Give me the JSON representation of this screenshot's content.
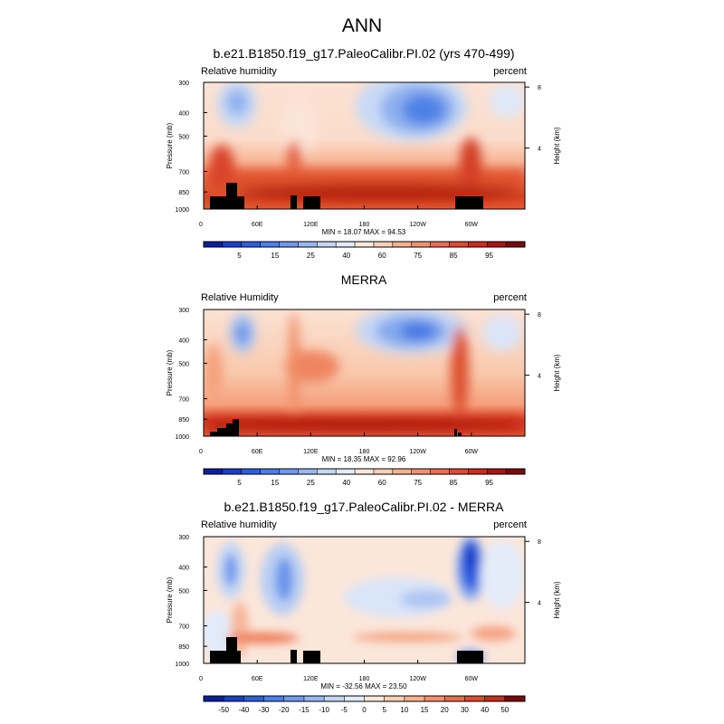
{
  "page_title": "ANN",
  "chart_data": [
    {
      "type": "heatmap",
      "title": "b.e21.B1850.f19_g17.PaleoCalibr.PI.02 (yrs 470-499)",
      "left_label": "Relative humidity",
      "right_label": "percent",
      "ylabel": "Pressure (mb)",
      "ylabel_right": "Height (km)",
      "yticks": [
        "300",
        "400",
        "500",
        "700",
        "850",
        "1000"
      ],
      "yticks_right": [
        "8",
        "4"
      ],
      "xticks": [
        "0",
        "60E",
        "120E",
        "180",
        "120W",
        "60W"
      ],
      "stats": "MIN = 18.07  MAX = 94.53",
      "colorbar_labels": [
        "5",
        "15",
        "25",
        "40",
        "60",
        "75",
        "85",
        "95"
      ],
      "colorbar_colors": [
        "#0a1fa0",
        "#1a3fcc",
        "#2c5fe0",
        "#4a80ec",
        "#6f9af0",
        "#98b8f2",
        "#c4d8f6",
        "#e2ecfb",
        "#fbe8dc",
        "#fbd0b6",
        "#f8b28f",
        "#f39070",
        "#ed6c4f",
        "#e14a31",
        "#cc2c1b",
        "#a81510",
        "#7a0a08"
      ],
      "ylim": [
        1000,
        300
      ],
      "xlim": [
        0,
        360
      ]
    },
    {
      "type": "heatmap",
      "title": "MERRA",
      "left_label": "Relative Humidity",
      "right_label": "percent",
      "ylabel": "Pressure (mb)",
      "ylabel_right": "Height (km)",
      "yticks": [
        "300",
        "400",
        "500",
        "700",
        "850",
        "1000"
      ],
      "yticks_right": [
        "8",
        "4"
      ],
      "xticks": [
        "0",
        "60E",
        "120E",
        "180",
        "120W",
        "60W"
      ],
      "stats": "MIN = 18.35  MAX = 92.96",
      "colorbar_labels": [
        "5",
        "15",
        "25",
        "40",
        "60",
        "75",
        "85",
        "95"
      ],
      "colorbar_colors": [
        "#0a1fa0",
        "#1a3fcc",
        "#2c5fe0",
        "#4a80ec",
        "#6f9af0",
        "#98b8f2",
        "#c4d8f6",
        "#e2ecfb",
        "#fbe8dc",
        "#fbd0b6",
        "#f8b28f",
        "#f39070",
        "#ed6c4f",
        "#e14a31",
        "#cc2c1b",
        "#a81510",
        "#7a0a08"
      ],
      "ylim": [
        1000,
        300
      ],
      "xlim": [
        0,
        360
      ]
    },
    {
      "type": "heatmap",
      "title": "b.e21.B1850.f19_g17.PaleoCalibr.PI.02 - MERRA",
      "left_label": "Relative humidity",
      "right_label": "percent",
      "ylabel": "Pressure (mb)",
      "ylabel_right": "Height (km)",
      "yticks": [
        "300",
        "400",
        "500",
        "700",
        "850",
        "1000"
      ],
      "yticks_right": [
        "8",
        "4"
      ],
      "xticks": [
        "0",
        "60E",
        "120E",
        "180",
        "120W",
        "60W"
      ],
      "stats": "MIN = -32.56  MAX = 23.50",
      "colorbar_labels": [
        "-50",
        "-40",
        "-30",
        "-20",
        "-15",
        "-10",
        "-5",
        "0",
        "5",
        "10",
        "15",
        "20",
        "30",
        "40",
        "50"
      ],
      "colorbar_colors": [
        "#0a1fa0",
        "#1a3fcc",
        "#2c5fe0",
        "#4a80ec",
        "#6f9af0",
        "#98b8f2",
        "#c4d8f6",
        "#e2ecfb",
        "#fbe8dc",
        "#fbd0b6",
        "#f8b28f",
        "#f39070",
        "#ed6c4f",
        "#e14a31",
        "#cc2c1b",
        "#7a0a08"
      ],
      "ylim": [
        1000,
        300
      ],
      "xlim": [
        0,
        360
      ]
    }
  ]
}
